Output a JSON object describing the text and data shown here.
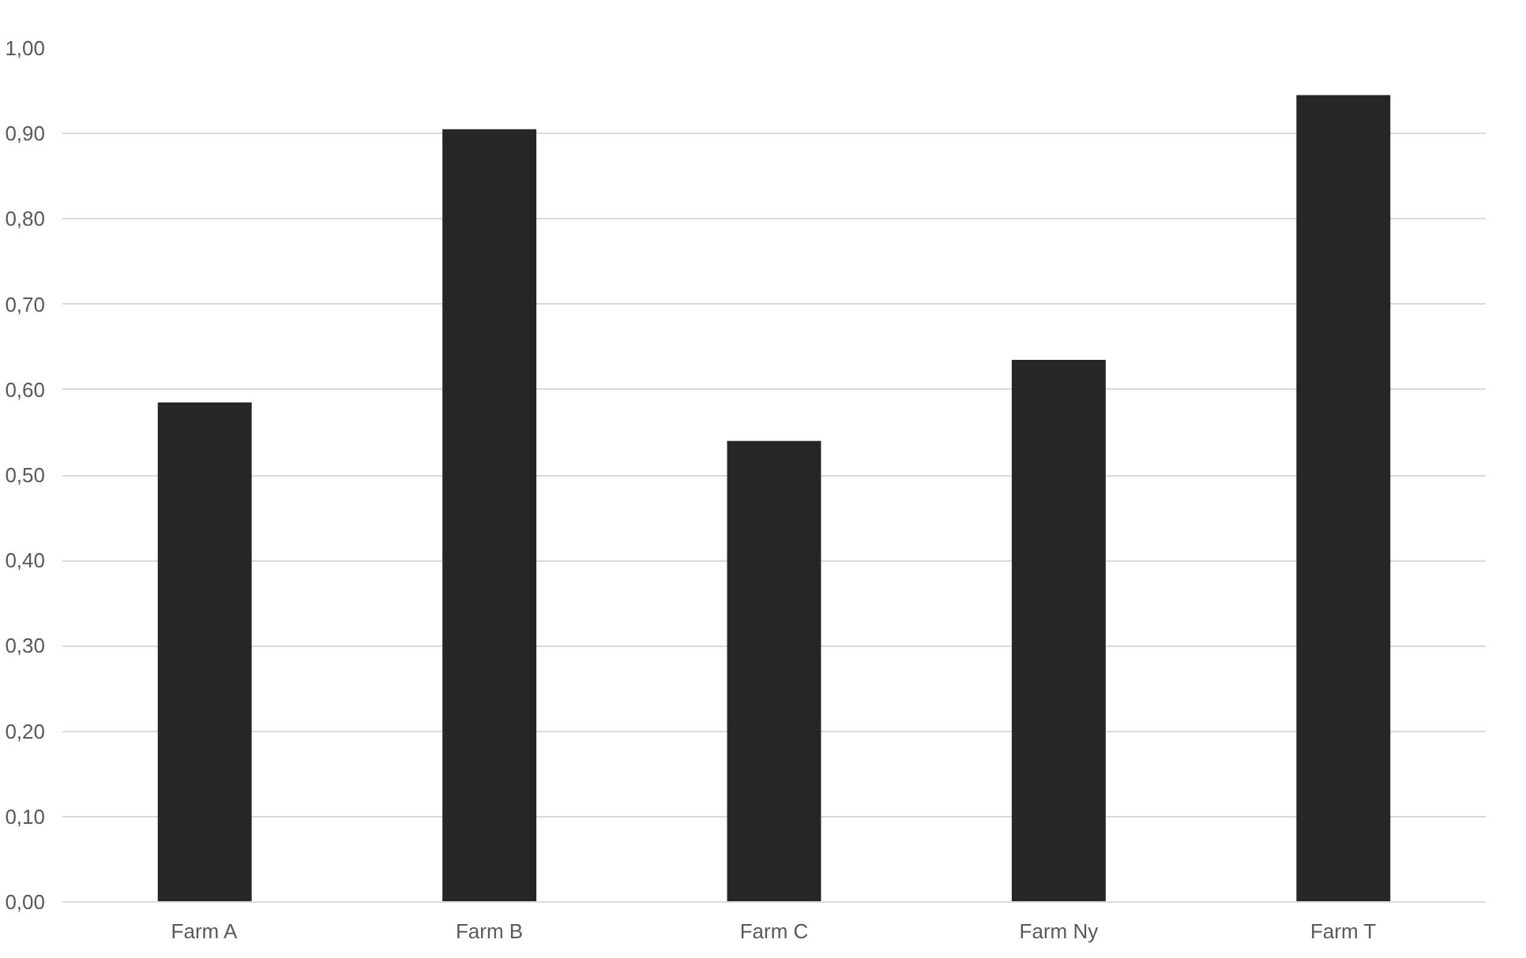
{
  "chart_data": {
    "type": "bar",
    "categories": [
      "Farm A",
      "Farm B",
      "Farm C",
      "Farm Ny",
      "Farm T"
    ],
    "values": [
      0.585,
      0.905,
      0.54,
      0.635,
      0.945
    ],
    "color": "#262626",
    "ylim": [
      0,
      1.0
    ],
    "yticks": [
      {
        "value": 0,
        "label": "0,00"
      },
      {
        "value": 0.1,
        "label": "0,10"
      },
      {
        "value": 0.2,
        "label": "0,20"
      },
      {
        "value": 0.3,
        "label": "0,30"
      },
      {
        "value": 0.4,
        "label": "0,40"
      },
      {
        "value": 0.5,
        "label": "0,50"
      },
      {
        "value": 0.6,
        "label": "0,60"
      },
      {
        "value": 0.7,
        "label": "0,70"
      },
      {
        "value": 0.8,
        "label": "0,80"
      },
      {
        "value": 0.9,
        "label": "0,90"
      },
      {
        "value": 1.0,
        "label": "1,00"
      }
    ],
    "grid": "y"
  }
}
